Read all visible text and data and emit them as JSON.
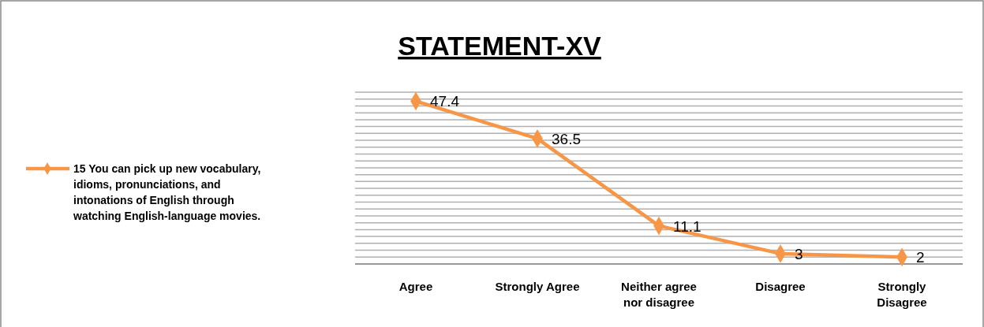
{
  "chart_data": {
    "type": "line",
    "title": "STATEMENT-XV",
    "categories": [
      "Agree",
      "Strongly Agree",
      "Neither agree nor disagree",
      "Disagree",
      "Strongly Disagree"
    ],
    "series": [
      {
        "name": "15 You can pick up new vocabulary, idioms, pronunciations, and intonations of English through watching English-language movies.",
        "color": "#f79646",
        "values": [
          47.4,
          36.5,
          11.1,
          3,
          2
        ]
      }
    ],
    "ylim": [
      0,
      50
    ],
    "yticks": [
      {
        "value": 0,
        "label": null
      },
      {
        "value": 2,
        "label": null
      },
      {
        "value": 4,
        "label": null
      },
      {
        "value": 6,
        "label": null
      },
      {
        "value": 8,
        "label": null
      },
      {
        "value": 10,
        "label": null
      },
      {
        "value": 12,
        "label": null
      },
      {
        "value": 14,
        "label": null
      },
      {
        "value": 16,
        "label": null
      },
      {
        "value": 18,
        "label": null
      },
      {
        "value": 20,
        "label": null
      },
      {
        "value": 22,
        "label": null
      },
      {
        "value": 24,
        "label": null
      },
      {
        "value": 26,
        "label": null
      },
      {
        "value": 28,
        "label": null
      },
      {
        "value": 30,
        "label": null
      },
      {
        "value": 32,
        "label": null
      },
      {
        "value": 34,
        "label": null
      },
      {
        "value": 36,
        "label": null
      },
      {
        "value": 38,
        "label": null
      },
      {
        "value": 40,
        "label": null
      },
      {
        "value": 42,
        "label": null
      },
      {
        "value": 44,
        "label": null
      },
      {
        "value": 46,
        "label": null
      },
      {
        "value": 48,
        "label": null
      },
      {
        "value": 50,
        "label": null
      }
    ],
    "tick_labels": "x",
    "grid": "y",
    "legend": "left",
    "marker": "diamond",
    "line_style": "solid",
    "data_labels": true
  }
}
